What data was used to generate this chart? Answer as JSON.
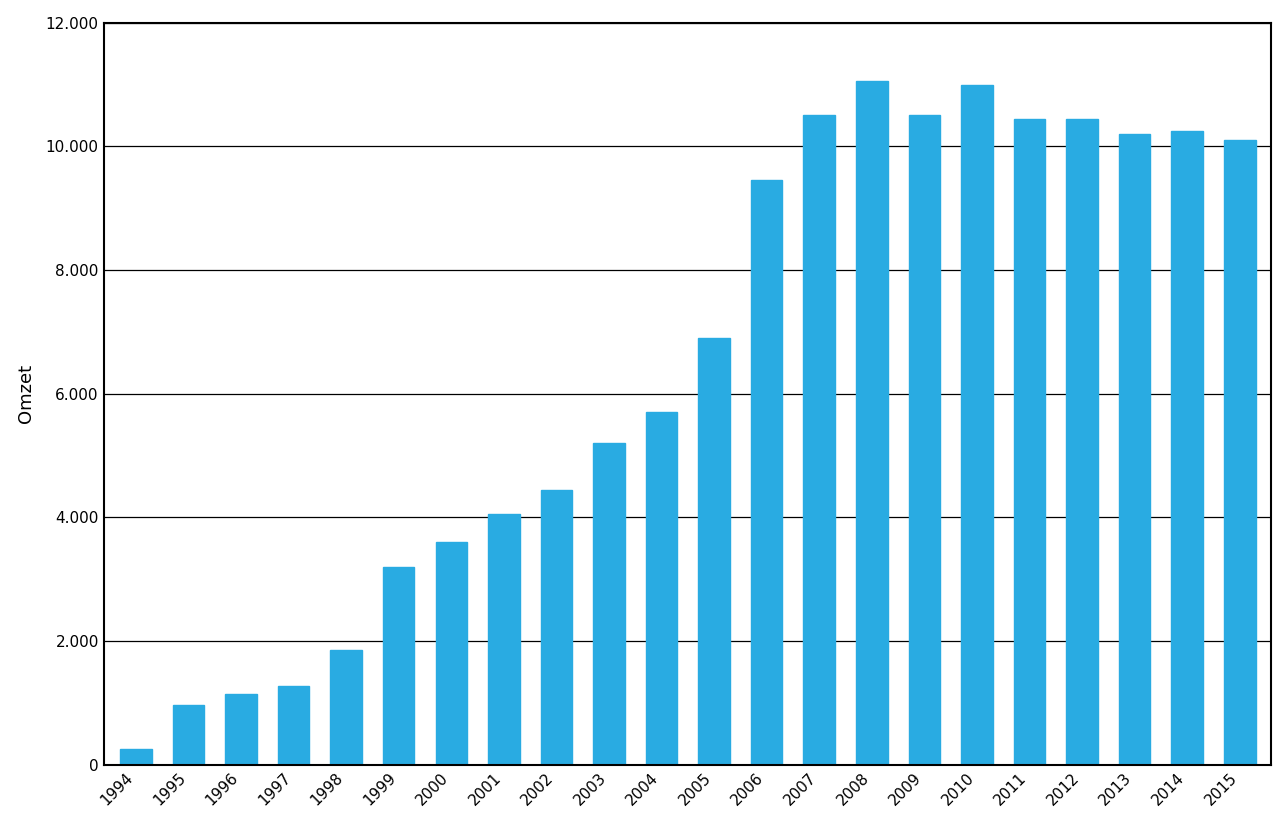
{
  "years": [
    1994,
    1995,
    1996,
    1997,
    1998,
    1999,
    2000,
    2001,
    2002,
    2003,
    2004,
    2005,
    2006,
    2007,
    2008,
    2009,
    2010,
    2011,
    2012,
    2013,
    2014,
    2015
  ],
  "values": [
    250,
    970,
    1150,
    1280,
    1850,
    3200,
    3600,
    4050,
    4450,
    5200,
    5700,
    6900,
    9450,
    10500,
    11050,
    10500,
    11000,
    10450,
    10450,
    10200,
    10250,
    10100
  ],
  "bar_color": "#29ABE2",
  "ylabel": "Omzet",
  "ylim": [
    0,
    12000
  ],
  "yticks": [
    0,
    2000,
    4000,
    6000,
    8000,
    10000,
    12000
  ],
  "ytick_labels": [
    "0",
    "2.000",
    "4.000",
    "6.000",
    "8.000",
    "10.000",
    "12.000"
  ],
  "background_color": "#ffffff",
  "grid_color": "#000000",
  "ylabel_fontsize": 13,
  "tick_fontsize": 11,
  "bar_width": 0.6,
  "spine_linewidth": 1.5,
  "xlabel_rotation": 45,
  "xlabel_ha": "right"
}
